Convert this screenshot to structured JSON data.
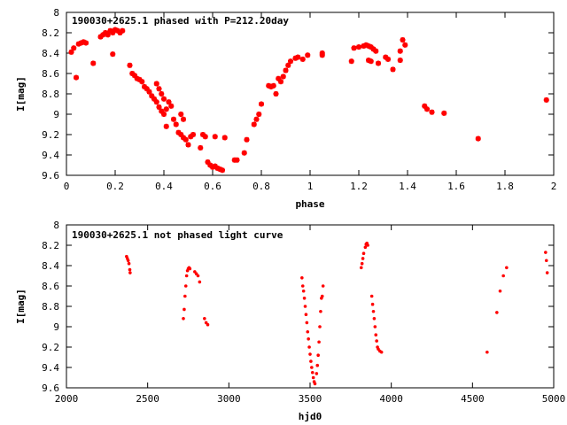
{
  "colors": {
    "points": "#ff0000",
    "axes": "#000000",
    "background": "#ffffff"
  },
  "chart_data": [
    {
      "type": "scatter",
      "title": "190030+2625.1 phased with P=212.20day",
      "xlabel": "phase",
      "ylabel": "I[mag]",
      "xlim": [
        0,
        2
      ],
      "ylim": [
        8,
        9.6
      ],
      "y_inverted": true,
      "grid": false,
      "legend": "none",
      "xticks": [
        "0",
        "0.2",
        "0.4",
        "0.6",
        "0.8",
        "1",
        "1.2",
        "1.4",
        "1.6",
        "1.8",
        "2"
      ],
      "yticks": [
        "8",
        "8.2",
        "8.4",
        "8.6",
        "8.8",
        "9",
        "9.2",
        "9.4",
        "9.6"
      ],
      "marker": "plus",
      "points": [
        [
          0.02,
          8.39
        ],
        [
          0.03,
          8.35
        ],
        [
          0.04,
          8.64
        ],
        [
          0.05,
          8.31
        ],
        [
          0.06,
          8.3
        ],
        [
          0.07,
          8.29
        ],
        [
          0.08,
          8.3
        ],
        [
          0.11,
          8.5
        ],
        [
          0.14,
          8.24
        ],
        [
          0.15,
          8.22
        ],
        [
          0.16,
          8.2
        ],
        [
          0.17,
          8.22
        ],
        [
          0.18,
          8.18
        ],
        [
          0.19,
          8.2
        ],
        [
          0.2,
          8.17
        ],
        [
          0.21,
          8.18
        ],
        [
          0.22,
          8.2
        ],
        [
          0.23,
          8.18
        ],
        [
          0.19,
          8.41
        ],
        [
          0.26,
          8.52
        ],
        [
          0.27,
          8.6
        ],
        [
          0.28,
          8.62
        ],
        [
          0.29,
          8.65
        ],
        [
          0.3,
          8.66
        ],
        [
          0.31,
          8.68
        ],
        [
          0.32,
          8.73
        ],
        [
          0.33,
          8.75
        ],
        [
          0.34,
          8.78
        ],
        [
          0.35,
          8.82
        ],
        [
          0.36,
          8.85
        ],
        [
          0.37,
          8.88
        ],
        [
          0.38,
          8.93
        ],
        [
          0.39,
          8.97
        ],
        [
          0.4,
          9.0
        ],
        [
          0.37,
          8.7
        ],
        [
          0.38,
          8.75
        ],
        [
          0.39,
          8.8
        ],
        [
          0.4,
          8.85
        ],
        [
          0.41,
          8.95
        ],
        [
          0.42,
          8.88
        ],
        [
          0.43,
          8.92
        ],
        [
          0.44,
          9.05
        ],
        [
          0.45,
          9.1
        ],
        [
          0.46,
          9.18
        ],
        [
          0.47,
          9.2
        ],
        [
          0.48,
          9.23
        ],
        [
          0.49,
          9.25
        ],
        [
          0.5,
          9.3
        ],
        [
          0.41,
          9.12
        ],
        [
          0.47,
          9.0
        ],
        [
          0.48,
          9.05
        ],
        [
          0.51,
          9.22
        ],
        [
          0.52,
          9.2
        ],
        [
          0.55,
          9.33
        ],
        [
          0.56,
          9.2
        ],
        [
          0.57,
          9.22
        ],
        [
          0.58,
          9.47
        ],
        [
          0.59,
          9.5
        ],
        [
          0.6,
          9.52
        ],
        [
          0.61,
          9.51
        ],
        [
          0.62,
          9.53
        ],
        [
          0.63,
          9.54
        ],
        [
          0.64,
          9.55
        ],
        [
          0.61,
          9.22
        ],
        [
          0.65,
          9.23
        ],
        [
          0.69,
          9.45
        ],
        [
          0.7,
          9.45
        ],
        [
          0.73,
          9.38
        ],
        [
          0.74,
          9.25
        ],
        [
          0.77,
          9.1
        ],
        [
          0.78,
          9.05
        ],
        [
          0.8,
          8.9
        ],
        [
          0.79,
          9.0
        ],
        [
          0.83,
          8.72
        ],
        [
          0.84,
          8.73
        ],
        [
          0.85,
          8.72
        ],
        [
          0.86,
          8.8
        ],
        [
          0.87,
          8.65
        ],
        [
          0.88,
          8.68
        ],
        [
          0.89,
          8.63
        ],
        [
          0.9,
          8.57
        ],
        [
          0.91,
          8.52
        ],
        [
          0.92,
          8.48
        ],
        [
          0.94,
          8.45
        ],
        [
          0.95,
          8.44
        ],
        [
          0.97,
          8.46
        ],
        [
          0.99,
          8.42
        ],
        [
          1.05,
          8.4
        ],
        [
          1.05,
          8.42
        ],
        [
          1.17,
          8.48
        ],
        [
          1.18,
          8.35
        ],
        [
          1.2,
          8.34
        ],
        [
          1.22,
          8.33
        ],
        [
          1.23,
          8.32
        ],
        [
          1.24,
          8.33
        ],
        [
          1.25,
          8.34
        ],
        [
          1.26,
          8.36
        ],
        [
          1.27,
          8.38
        ],
        [
          1.24,
          8.47
        ],
        [
          1.25,
          8.48
        ],
        [
          1.28,
          8.5
        ],
        [
          1.31,
          8.44
        ],
        [
          1.32,
          8.46
        ],
        [
          1.34,
          8.56
        ],
        [
          1.37,
          8.38
        ],
        [
          1.38,
          8.27
        ],
        [
          1.39,
          8.32
        ],
        [
          1.37,
          8.47
        ],
        [
          1.47,
          8.92
        ],
        [
          1.48,
          8.95
        ],
        [
          1.5,
          8.98
        ],
        [
          1.55,
          8.99
        ],
        [
          1.69,
          9.24
        ],
        [
          1.97,
          8.86
        ]
      ]
    },
    {
      "type": "scatter",
      "title": "190030+2625.1 not phased light curve",
      "xlabel": "hjd0",
      "ylabel": "I[mag]",
      "xlim": [
        2000,
        5000
      ],
      "ylim": [
        8,
        9.6
      ],
      "y_inverted": true,
      "grid": false,
      "legend": "none",
      "xticks": [
        "2000",
        "2500",
        "3000",
        "3500",
        "4000",
        "4500",
        "5000"
      ],
      "yticks": [
        "8",
        "8.2",
        "8.4",
        "8.6",
        "8.8",
        "9",
        "9.2",
        "9.4",
        "9.6"
      ],
      "marker": "dot",
      "points": [
        [
          2370,
          8.31
        ],
        [
          2375,
          8.33
        ],
        [
          2380,
          8.35
        ],
        [
          2385,
          8.38
        ],
        [
          2390,
          8.44
        ],
        [
          2392,
          8.47
        ],
        [
          2720,
          8.92
        ],
        [
          2725,
          8.83
        ],
        [
          2730,
          8.7
        ],
        [
          2735,
          8.6
        ],
        [
          2740,
          8.5
        ],
        [
          2745,
          8.45
        ],
        [
          2750,
          8.43
        ],
        [
          2755,
          8.42
        ],
        [
          2760,
          8.43
        ],
        [
          2790,
          8.46
        ],
        [
          2800,
          8.48
        ],
        [
          2810,
          8.5
        ],
        [
          2820,
          8.56
        ],
        [
          2850,
          8.92
        ],
        [
          2860,
          8.96
        ],
        [
          2870,
          8.98
        ],
        [
          3450,
          8.52
        ],
        [
          3455,
          8.6
        ],
        [
          3460,
          8.65
        ],
        [
          3465,
          8.72
        ],
        [
          3470,
          8.8
        ],
        [
          3475,
          8.88
        ],
        [
          3480,
          8.96
        ],
        [
          3485,
          9.05
        ],
        [
          3490,
          9.12
        ],
        [
          3495,
          9.2
        ],
        [
          3500,
          9.27
        ],
        [
          3505,
          9.34
        ],
        [
          3510,
          9.4
        ],
        [
          3515,
          9.45
        ],
        [
          3520,
          9.5
        ],
        [
          3525,
          9.54
        ],
        [
          3530,
          9.56
        ],
        [
          3540,
          9.46
        ],
        [
          3545,
          9.38
        ],
        [
          3550,
          9.28
        ],
        [
          3555,
          9.15
        ],
        [
          3560,
          9.0
        ],
        [
          3565,
          8.85
        ],
        [
          3570,
          8.72
        ],
        [
          3575,
          8.7
        ],
        [
          3580,
          8.6
        ],
        [
          3815,
          8.42
        ],
        [
          3820,
          8.38
        ],
        [
          3825,
          8.33
        ],
        [
          3830,
          8.28
        ],
        [
          3840,
          8.22
        ],
        [
          3845,
          8.19
        ],
        [
          3850,
          8.18
        ],
        [
          3855,
          8.2
        ],
        [
          3880,
          8.7
        ],
        [
          3885,
          8.78
        ],
        [
          3890,
          8.85
        ],
        [
          3895,
          8.92
        ],
        [
          3900,
          9.0
        ],
        [
          3905,
          9.08
        ],
        [
          3910,
          9.14
        ],
        [
          3915,
          9.2
        ],
        [
          3920,
          9.22
        ],
        [
          3930,
          9.24
        ],
        [
          3940,
          9.25
        ],
        [
          4590,
          9.25
        ],
        [
          4650,
          8.86
        ],
        [
          4670,
          8.65
        ],
        [
          4690,
          8.5
        ],
        [
          4710,
          8.42
        ],
        [
          4950,
          8.27
        ],
        [
          4955,
          8.35
        ],
        [
          4960,
          8.47
        ]
      ]
    }
  ]
}
